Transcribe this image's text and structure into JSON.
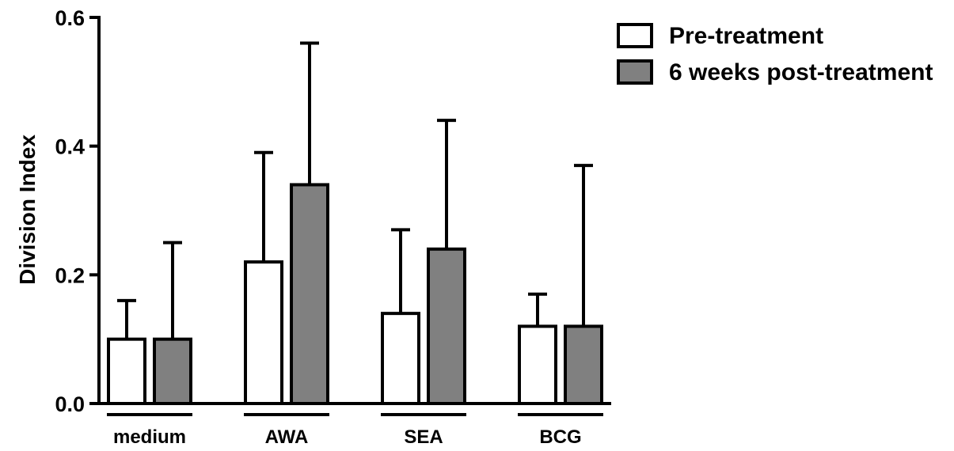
{
  "chart_data": {
    "type": "bar",
    "title": "",
    "xlabel": "",
    "ylabel": "Division Index",
    "ylim": [
      0,
      0.6
    ],
    "yticks": [
      "0.0",
      "0.2",
      "0.4",
      "0.6"
    ],
    "ytick_values": [
      0,
      0.2,
      0.4,
      0.6
    ],
    "categories": [
      "medium",
      "AWA",
      "SEA",
      "BCG"
    ],
    "series": [
      {
        "name": "Pre-treatment",
        "color": "#ffffff",
        "values": [
          0.1,
          0.22,
          0.14,
          0.12
        ],
        "error_upper": [
          0.16,
          0.39,
          0.27,
          0.17
        ]
      },
      {
        "name": "6 weeks post-treatment",
        "color": "#808080",
        "values": [
          0.1,
          0.34,
          0.24,
          0.12
        ],
        "error_upper": [
          0.25,
          0.56,
          0.44,
          0.37
        ]
      }
    ],
    "grid": false,
    "legend_position": "top-right",
    "error_bars": "upper only"
  }
}
